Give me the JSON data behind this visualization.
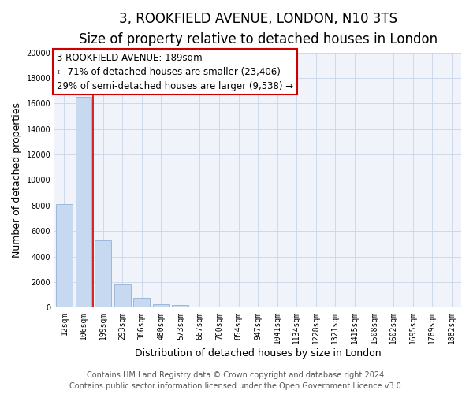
{
  "title": "3, ROOKFIELD AVENUE, LONDON, N10 3TS",
  "subtitle": "Size of property relative to detached houses in London",
  "xlabel": "Distribution of detached houses by size in London",
  "ylabel": "Number of detached properties",
  "bar_labels": [
    "12sqm",
    "106sqm",
    "199sqm",
    "293sqm",
    "386sqm",
    "480sqm",
    "573sqm",
    "667sqm",
    "760sqm",
    "854sqm",
    "947sqm",
    "1041sqm",
    "1134sqm",
    "1228sqm",
    "1321sqm",
    "1415sqm",
    "1508sqm",
    "1602sqm",
    "1695sqm",
    "1789sqm",
    "1882sqm"
  ],
  "bar_values": [
    8100,
    16500,
    5300,
    1800,
    750,
    300,
    200,
    0,
    0,
    0,
    0,
    0,
    0,
    0,
    0,
    0,
    0,
    0,
    0,
    0,
    0
  ],
  "bar_color": "#c6d9f0",
  "bar_edge_color": "#a0b8d8",
  "property_line_color": "#cc0000",
  "ylim": [
    0,
    20000
  ],
  "yticks": [
    0,
    2000,
    4000,
    6000,
    8000,
    10000,
    12000,
    14000,
    16000,
    18000,
    20000
  ],
  "annotation_title": "3 ROOKFIELD AVENUE: 189sqm",
  "annotation_line1": "← 71% of detached houses are smaller (23,406)",
  "annotation_line2": "29% of semi-detached houses are larger (9,538) →",
  "footer_line1": "Contains HM Land Registry data © Crown copyright and database right 2024.",
  "footer_line2": "Contains public sector information licensed under the Open Government Licence v3.0.",
  "title_fontsize": 12,
  "subtitle_fontsize": 10,
  "axis_label_fontsize": 9,
  "tick_fontsize": 7,
  "annotation_fontsize": 8.5,
  "footer_fontsize": 7
}
